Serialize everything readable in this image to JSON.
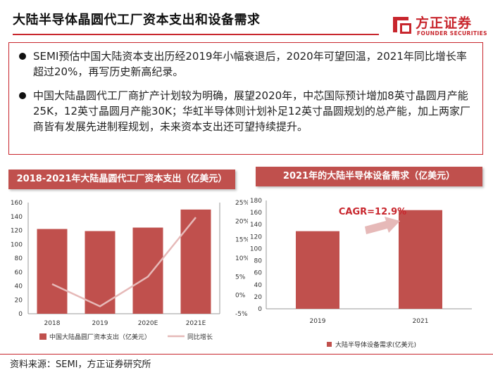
{
  "header": {
    "title": "大陆半导体晶圆代工厂资本支出和设备需求",
    "logo_cn": "方正证券",
    "logo_en": "FOUNDER SECURITIES"
  },
  "summary": {
    "bullets": [
      "SEMI预估中国大陆资本支出历经2019年小幅衰退后，2020年可望回温，2021年同比增长率超过20%，再写历史新高纪录。",
      "中国大陆晶圆代工厂商扩产计划较为明确，展望2020年，中芯国际预计增加8英寸晶圆月产能25K，12英寸晶圆月产能30K；华虹半导体则计划补足12英寸晶圆规划的总产能，加上两家厂商皆有发展先进制程规划，未来资本支出还可望持续提升。"
    ]
  },
  "colors": {
    "accent": "#c8262d",
    "bar": "#c0504d",
    "line": "#e6b9b8",
    "arrow": "#e6b9b8",
    "banner": "#c0504d"
  },
  "chart_data": [
    {
      "type": "bar",
      "banner": "2018-2021年大陆晶圆代工厂资本支出（亿美元）",
      "categories": [
        "2018",
        "2019",
        "2020E",
        "2021E"
      ],
      "series": [
        {
          "name": "中国大陆晶圆厂资本支出（亿美元）",
          "type": "bar",
          "axis": "left",
          "values": [
            122,
            119,
            124,
            150
          ]
        },
        {
          "name": "同比增长",
          "type": "line",
          "axis": "right",
          "values": [
            3.0,
            -3.0,
            5.0,
            21.0
          ]
        }
      ],
      "ylim": [
        0,
        160
      ],
      "yticks": [
        0,
        20,
        40,
        60,
        80,
        100,
        120,
        140,
        160
      ],
      "y2lim": [
        -5,
        25
      ],
      "y2ticks": [
        "-5%",
        "0%",
        "5%",
        "10%",
        "15%",
        "20%",
        "25%"
      ],
      "grid": false,
      "legend": "bottom"
    },
    {
      "type": "bar",
      "banner": "2021年的大陆半导体设备需求（亿美元）",
      "categories": [
        "2019",
        "2021"
      ],
      "series": [
        {
          "name": "大陆半导体设备需求(亿美元)",
          "values": [
            129,
            164
          ]
        }
      ],
      "annotation": "CAGR=12.9%",
      "ylim": [
        0,
        180
      ],
      "yticks": [
        0,
        20,
        40,
        60,
        80,
        100,
        120,
        140,
        160,
        180
      ],
      "grid": false,
      "legend": "bottom"
    }
  ],
  "footer": {
    "source": "资料来源：SEMI，方正证券研究所"
  }
}
